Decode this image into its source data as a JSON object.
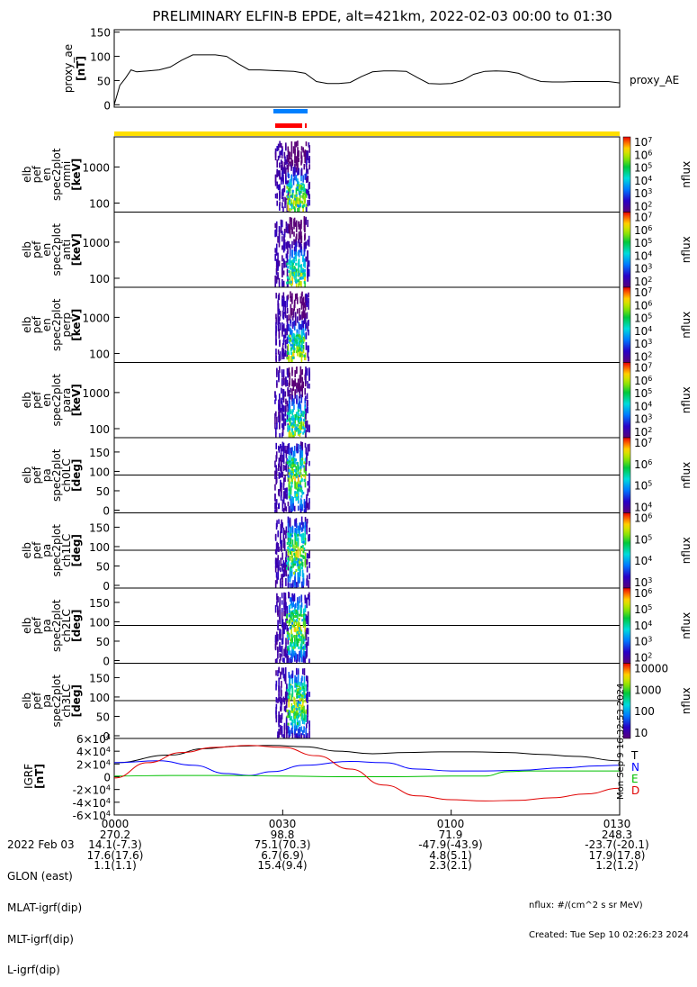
{
  "title": "PRELIMINARY ELFIN-B EPDE, alt=421km, 2022-02-03 00:00 to 01:30",
  "chart_data": [
    {
      "type": "line",
      "panel": "proxy_ae",
      "ylabel": [
        "proxy_ae",
        "[nT]"
      ],
      "yticks": [
        "0",
        "50",
        "100",
        "150"
      ],
      "ylim": [
        -5,
        155
      ],
      "series": [
        {
          "name": "proxy_AE",
          "x_minutes": [
            0,
            1,
            2,
            3,
            4,
            5,
            6,
            8,
            10,
            12,
            14,
            16,
            18,
            20,
            22,
            24,
            26,
            28,
            30,
            32,
            34,
            36,
            38,
            40,
            42,
            44,
            46,
            48,
            50,
            52,
            54,
            56,
            58,
            60,
            62,
            64,
            66,
            68,
            70,
            72,
            74,
            76,
            78,
            80,
            82,
            84,
            86,
            88,
            90
          ],
          "values": [
            0,
            40,
            55,
            72,
            68,
            69,
            70,
            72,
            78,
            92,
            103,
            103,
            103,
            100,
            85,
            72,
            72,
            71,
            70,
            69,
            65,
            48,
            44,
            44,
            46,
            58,
            68,
            70,
            70,
            69,
            56,
            44,
            43,
            44,
            50,
            63,
            69,
            70,
            69,
            65,
            55,
            48,
            47,
            47,
            48,
            48,
            48,
            48,
            45
          ]
        }
      ]
    },
    {
      "type": "heatmap",
      "panels": [
        {
          "ylabel": [
            "elb",
            "pef",
            "en",
            "spec2plot",
            "omni",
            "[keV]"
          ],
          "yticks": [
            "100",
            "1000"
          ],
          "cbar_ticks": [
            "10^2",
            "10^3",
            "10^4",
            "10^5",
            "10^6",
            "10^7"
          ],
          "cbar_label": "nflux"
        },
        {
          "ylabel": [
            "elb",
            "pef",
            "en",
            "spec2plot",
            "anti",
            "[keV]"
          ],
          "yticks": [
            "100",
            "1000"
          ],
          "cbar_ticks": [
            "10^2",
            "10^3",
            "10^4",
            "10^5",
            "10^6",
            "10^7"
          ],
          "cbar_label": "nflux"
        },
        {
          "ylabel": [
            "elb",
            "pef",
            "en",
            "spec2plot",
            "perp",
            "[keV]"
          ],
          "yticks": [
            "100",
            "1000"
          ],
          "cbar_ticks": [
            "10^2",
            "10^3",
            "10^4",
            "10^5",
            "10^6",
            "10^7"
          ],
          "cbar_label": "nflux"
        },
        {
          "ylabel": [
            "elb",
            "pef",
            "en",
            "spec2plot",
            "para",
            "[keV]"
          ],
          "yticks": [
            "100",
            "1000"
          ],
          "cbar_ticks": [
            "10^2",
            "10^3",
            "10^4",
            "10^5",
            "10^6",
            "10^7"
          ],
          "cbar_label": "nflux"
        },
        {
          "ylabel": [
            "elb",
            "pef",
            "pa",
            "spec2plot",
            "ch0LC",
            "[deg]"
          ],
          "yticks": [
            "0",
            "50",
            "100",
            "150"
          ],
          "cbar_ticks": [
            "10^4",
            "10^5",
            "10^6",
            "10^7"
          ],
          "cbar_label": "nflux"
        },
        {
          "ylabel": [
            "elb",
            "pef",
            "pa",
            "spec2plot",
            "ch1LC",
            "[deg]"
          ],
          "yticks": [
            "0",
            "50",
            "100",
            "150"
          ],
          "cbar_ticks": [
            "10^3",
            "10^4",
            "10^5",
            "10^6"
          ],
          "cbar_label": "nflux"
        },
        {
          "ylabel": [
            "elb",
            "pef",
            "pa",
            "spec2plot",
            "ch2LC",
            "[deg]"
          ],
          "yticks": [
            "0",
            "50",
            "100",
            "150"
          ],
          "cbar_ticks": [
            "10^2",
            "10^3",
            "10^4",
            "10^5",
            "10^6"
          ],
          "cbar_label": "nflux"
        },
        {
          "ylabel": [
            "elb",
            "pef",
            "pa",
            "spec2plot",
            "ch3LC",
            "[deg]"
          ],
          "yticks": [
            "0",
            "50",
            "100",
            "150"
          ],
          "cbar_ticks": [
            "10",
            "100",
            "1000",
            "10000"
          ],
          "cbar_label": "nflux"
        }
      ]
    },
    {
      "type": "line",
      "panel": "IGRF",
      "ylabel": [
        "IGRF",
        "[nT]"
      ],
      "yticks": [
        "-6×10^4",
        "-4×10^4",
        "-2×10^4",
        "0",
        "2×10^4",
        "4×10^4",
        "6×10^4"
      ],
      "ylim": [
        -60000,
        60000
      ],
      "legend": [
        "T",
        "N",
        "E",
        "D"
      ],
      "series": [
        {
          "name": "T",
          "color": "#000000",
          "x_minutes": [
            0,
            10,
            16,
            22,
            28,
            34,
            40,
            46,
            52,
            58,
            64,
            70,
            76,
            82,
            90
          ],
          "values": [
            22000,
            34000,
            44000,
            48000,
            49000,
            47000,
            40000,
            36000,
            38000,
            39000,
            39000,
            38000,
            35000,
            32000,
            25000
          ]
        },
        {
          "name": "N",
          "color": "#0000ff",
          "x_minutes": [
            0,
            8,
            14,
            20,
            24,
            28,
            34,
            42,
            48,
            54,
            60,
            66,
            72,
            80,
            86,
            90
          ],
          "values": [
            22000,
            25000,
            18000,
            5000,
            2000,
            8000,
            18000,
            24000,
            22000,
            12000,
            9000,
            9000,
            10000,
            14000,
            17000,
            18000
          ]
        },
        {
          "name": "E",
          "color": "#00c000",
          "x_minutes": [
            0,
            10,
            20,
            30,
            40,
            50,
            60,
            66,
            70,
            74,
            80,
            90
          ],
          "values": [
            1000,
            2000,
            2000,
            1000,
            0,
            0,
            1000,
            1000,
            8000,
            9000,
            9000,
            9000
          ]
        },
        {
          "name": "D",
          "color": "#e00000",
          "x_minutes": [
            0,
            6,
            12,
            18,
            24,
            30,
            36,
            42,
            48,
            54,
            60,
            66,
            72,
            78,
            84,
            90
          ],
          "values": [
            -2000,
            22000,
            38000,
            46000,
            49000,
            46000,
            33000,
            12000,
            -13000,
            -30000,
            -36000,
            -38000,
            -37000,
            -33000,
            -27000,
            -18000
          ]
        }
      ]
    }
  ],
  "right_labels": {
    "proxy": "proxy_AE",
    "cbar_unit": "nflux",
    "igrf_legend": [
      "T",
      "N",
      "E",
      "D"
    ],
    "created_vertical": "Mon Sep 9 16:32:53 2024"
  },
  "time_axis": {
    "ticks": [
      "0000",
      "0030",
      "0100",
      "0130"
    ],
    "rows": [
      {
        "label": "2022 Feb 03",
        "values": [
          "0000",
          "0030",
          "0100",
          "0130"
        ]
      },
      {
        "label": "GLON (east)",
        "values": [
          "270.2",
          "98.8",
          "71.9",
          "248.3"
        ]
      },
      {
        "label": "MLAT-igrf(dip)",
        "values": [
          "14.1(-7.3)",
          "75.1(70.3)",
          "-47.9(-43.9)",
          "-23.7(-20.1)"
        ]
      },
      {
        "label": "MLT-igrf(dip)",
        "values": [
          "17.6(17.6)",
          "6.7(6.9)",
          "4.8(5.1)",
          "17.9(17.8)"
        ]
      },
      {
        "label": "L-igrf(dip)",
        "values": [
          "1.1(1.1)",
          "15.4(9.4)",
          "2.3(2.1)",
          "1.2(1.2)"
        ]
      }
    ]
  },
  "footer": {
    "units": "nflux: #/(cm^2 s sr MeV)",
    "created": "Created: Tue Sep 10 02:26:23 2024"
  },
  "colors": {
    "orbit_bar": "#ffdf00",
    "blue_bar": "#0080ff",
    "red_bar": "#ff0000"
  }
}
